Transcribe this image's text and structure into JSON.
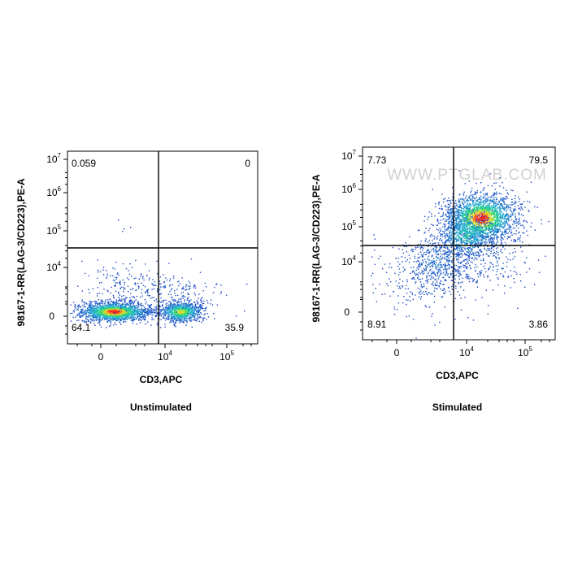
{
  "chart_data": [
    {
      "type": "scatter",
      "title": "",
      "caption": "Unstimulated",
      "xlabel": "CD3,APC",
      "ylabel": "98167-1-RR(LAG-3/CD223),PE-A",
      "x_scale": "biexponential",
      "y_scale": "biexponential",
      "x_ticks": [
        {
          "base": "0",
          "exp": ""
        },
        {
          "base": "10",
          "exp": "4"
        },
        {
          "base": "10",
          "exp": "5"
        }
      ],
      "y_ticks": [
        {
          "base": "0",
          "exp": ""
        },
        {
          "base": "10",
          "exp": "4"
        },
        {
          "base": "10",
          "exp": "5"
        },
        {
          "base": "10",
          "exp": "6"
        },
        {
          "base": "10",
          "exp": "7"
        }
      ],
      "quadrants": {
        "upper_left": "0.059",
        "upper_right": "0",
        "lower_left": "64.1",
        "lower_right": "35.9"
      },
      "populations": [
        {
          "name": "CD3- LAG-3-",
          "x_center": 0,
          "y_center": 0
        },
        {
          "name": "CD3+ LAG-3-",
          "x_center": 10000,
          "y_center": 0
        }
      ],
      "watermark": ""
    },
    {
      "type": "scatter",
      "title": "",
      "caption": "Stimulated",
      "xlabel": "CD3,APC",
      "ylabel": "98167-1-RR(LAG-3/CD223),PE-A",
      "x_scale": "biexponential",
      "y_scale": "biexponential",
      "x_ticks": [
        {
          "base": "0",
          "exp": ""
        },
        {
          "base": "10",
          "exp": "4"
        },
        {
          "base": "10",
          "exp": "5"
        }
      ],
      "y_ticks": [
        {
          "base": "0",
          "exp": ""
        },
        {
          "base": "10",
          "exp": "4"
        },
        {
          "base": "10",
          "exp": "5"
        },
        {
          "base": "10",
          "exp": "6"
        },
        {
          "base": "10",
          "exp": "7"
        }
      ],
      "quadrants": {
        "upper_left": "7.73",
        "upper_right": "79.5",
        "lower_left": "8.91",
        "lower_right": "3.86"
      },
      "populations": [
        {
          "name": "CD3+ LAG-3+",
          "x_center": 20000,
          "y_center": 150000
        }
      ],
      "watermark": "WWW.PTGLAB.COM"
    }
  ],
  "colors": {
    "density_low": "#1a3bc4",
    "density_mid": "#1fd27c",
    "density_high": "#ee1f18",
    "gate_line": "#000000",
    "frame": "#000000"
  }
}
